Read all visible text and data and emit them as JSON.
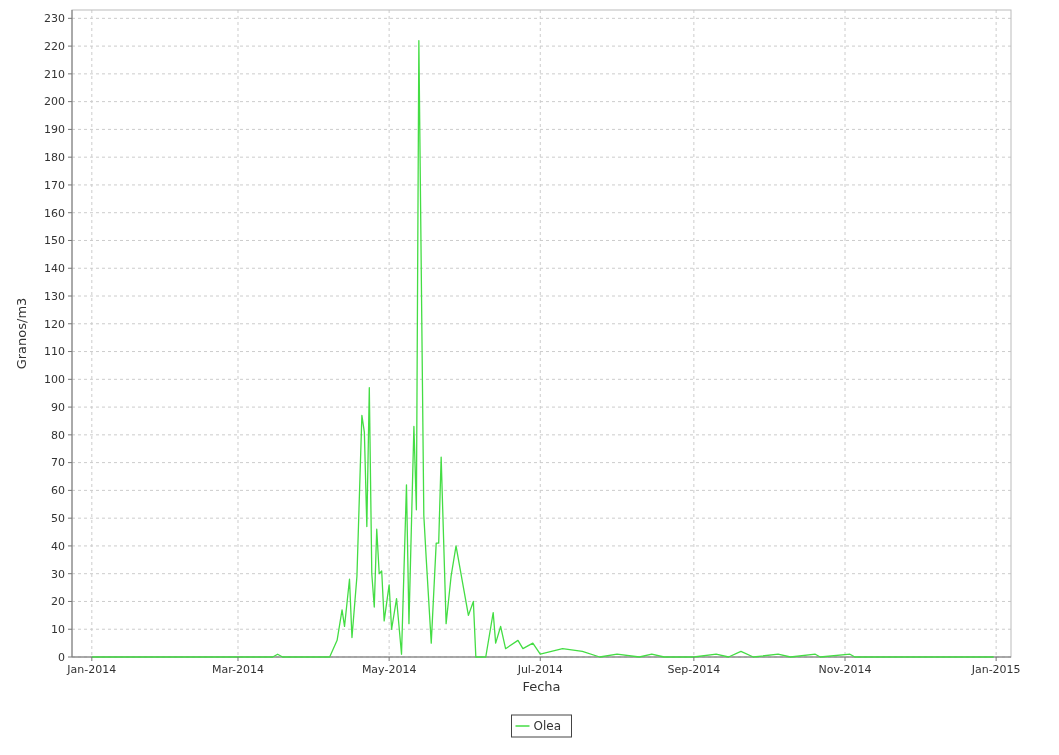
{
  "chart_data": {
    "type": "line",
    "xlabel": "Fecha",
    "ylabel": "Granos/m3",
    "xlim": [
      "2013-12-24",
      "2015-01-07"
    ],
    "xticks": [
      {
        "value": "2014-01-01",
        "label": "Jan-2014"
      },
      {
        "value": "2014-03-01",
        "label": "Mar-2014"
      },
      {
        "value": "2014-05-01",
        "label": "May-2014"
      },
      {
        "value": "2014-07-01",
        "label": "Jul-2014"
      },
      {
        "value": "2014-09-01",
        "label": "Sep-2014"
      },
      {
        "value": "2014-11-01",
        "label": "Nov-2014"
      },
      {
        "value": "2015-01-01",
        "label": "Jan-2015"
      }
    ],
    "ylim": [
      0,
      233
    ],
    "yticks": [
      0,
      10,
      20,
      30,
      40,
      50,
      60,
      70,
      80,
      90,
      100,
      110,
      120,
      130,
      140,
      150,
      160,
      170,
      180,
      190,
      200,
      210,
      220,
      230
    ],
    "grid": true,
    "legend": "bottom",
    "marker": "none",
    "line_style": "solid",
    "x": [
      "2014-01-01",
      "2014-03-15",
      "2014-03-17",
      "2014-03-19",
      "2014-04-07",
      "2014-04-10",
      "2014-04-12",
      "2014-04-13",
      "2014-04-15",
      "2014-04-16",
      "2014-04-18",
      "2014-04-20",
      "2014-04-21",
      "2014-04-22",
      "2014-04-23",
      "2014-04-24",
      "2014-04-25",
      "2014-04-26",
      "2014-04-27",
      "2014-04-28",
      "2014-04-29",
      "2014-05-01",
      "2014-05-02",
      "2014-05-04",
      "2014-05-06",
      "2014-05-08",
      "2014-05-09",
      "2014-05-11",
      "2014-05-12",
      "2014-05-13",
      "2014-05-15",
      "2014-05-16",
      "2014-05-18",
      "2014-05-20",
      "2014-05-21",
      "2014-05-22",
      "2014-05-24",
      "2014-05-26",
      "2014-05-28",
      "2014-05-31",
      "2014-06-02",
      "2014-06-04",
      "2014-06-05",
      "2014-06-09",
      "2014-06-12",
      "2014-06-13",
      "2014-06-15",
      "2014-06-17",
      "2014-06-22",
      "2014-06-24",
      "2014-06-28",
      "2014-07-01",
      "2014-07-10",
      "2014-07-18",
      "2014-07-25",
      "2014-08-01",
      "2014-08-10",
      "2014-08-15",
      "2014-08-20",
      "2014-09-01",
      "2014-09-10",
      "2014-09-15",
      "2014-09-20",
      "2014-09-25",
      "2014-10-05",
      "2014-10-10",
      "2014-10-20",
      "2014-10-22",
      "2014-11-03",
      "2014-11-05",
      "2014-12-31"
    ],
    "series": [
      {
        "name": "Olea",
        "color": "#44dd44",
        "values": [
          0,
          0,
          1,
          0,
          0,
          6,
          17,
          11,
          28,
          7,
          29,
          87,
          81,
          47,
          97,
          30,
          18,
          46,
          30,
          31,
          13,
          26,
          10,
          21,
          1,
          62,
          12,
          83,
          53,
          222,
          51,
          35,
          5,
          41,
          41,
          72,
          12,
          29,
          40,
          25,
          15,
          20,
          0,
          0,
          16,
          5,
          11,
          3,
          6,
          3,
          5,
          1,
          3,
          2,
          0,
          1,
          0,
          1,
          0,
          0,
          1,
          0,
          2,
          0,
          1,
          0,
          1,
          0,
          1,
          0,
          0
        ]
      }
    ]
  }
}
